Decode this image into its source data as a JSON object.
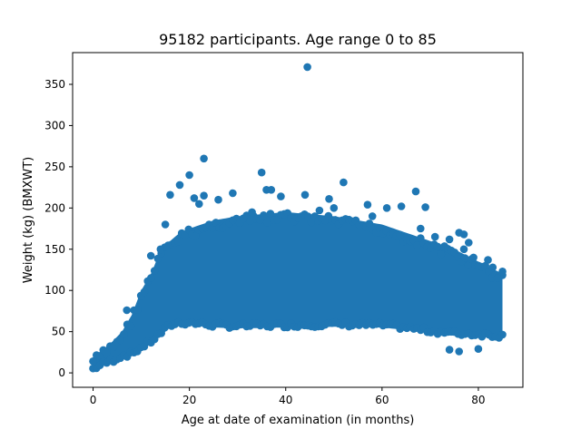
{
  "chart_data": {
    "type": "scatter",
    "title": "95182 participants. Age range 0 to 85",
    "xlabel": "Age at date of examination (in months)",
    "ylabel": "Weight (kg) (BMXWT)",
    "xlim": [
      -4.25,
      89.25
    ],
    "ylim": [
      -17.5,
      388.5
    ],
    "xticks": [
      0,
      20,
      40,
      60,
      80
    ],
    "yticks": [
      0,
      50,
      100,
      150,
      200,
      250,
      300,
      350
    ],
    "grid": false,
    "legend": "none",
    "marker_color": "#1f77b4",
    "series": [
      {
        "envelope_upper": [
          [
            0,
            20
          ],
          [
            2,
            28
          ],
          [
            4,
            38
          ],
          [
            6,
            50
          ],
          [
            8,
            70
          ],
          [
            10,
            100
          ],
          [
            12,
            120
          ],
          [
            14,
            148
          ],
          [
            16,
            160
          ],
          [
            18,
            170
          ],
          [
            20,
            175
          ],
          [
            25,
            185
          ],
          [
            30,
            190
          ],
          [
            40,
            195
          ],
          [
            50,
            190
          ],
          [
            55,
            185
          ],
          [
            60,
            180
          ],
          [
            65,
            170
          ],
          [
            70,
            160
          ],
          [
            75,
            150
          ],
          [
            80,
            135
          ],
          [
            85,
            120
          ]
        ],
        "envelope_lower": [
          [
            0,
            2
          ],
          [
            2,
            8
          ],
          [
            4,
            12
          ],
          [
            6,
            18
          ],
          [
            8,
            20
          ],
          [
            10,
            28
          ],
          [
            12,
            35
          ],
          [
            14,
            45
          ],
          [
            16,
            55
          ],
          [
            18,
            58
          ],
          [
            20,
            58
          ],
          [
            25,
            55
          ],
          [
            30,
            54
          ],
          [
            40,
            55
          ],
          [
            50,
            56
          ],
          [
            60,
            55
          ],
          [
            65,
            52
          ],
          [
            70,
            48
          ],
          [
            75,
            45
          ],
          [
            80,
            44
          ],
          [
            85,
            42
          ]
        ],
        "outliers": [
          [
            44.5,
            371
          ],
          [
            23,
            260
          ],
          [
            35,
            243
          ],
          [
            20,
            240
          ],
          [
            52,
            231
          ],
          [
            18,
            228
          ],
          [
            36,
            222
          ],
          [
            37,
            222
          ],
          [
            67,
            220
          ],
          [
            29,
            218
          ],
          [
            16,
            216
          ],
          [
            23,
            215
          ],
          [
            21,
            212
          ],
          [
            39,
            214
          ],
          [
            44,
            216
          ],
          [
            49,
            211
          ],
          [
            50,
            200
          ],
          [
            22,
            205
          ],
          [
            26,
            210
          ],
          [
            57,
            204
          ],
          [
            69,
            201
          ],
          [
            47,
            197
          ],
          [
            61,
            200
          ],
          [
            64,
            202
          ],
          [
            33,
            195
          ],
          [
            58,
            190
          ],
          [
            68,
            175
          ],
          [
            71,
            165
          ],
          [
            74,
            162
          ],
          [
            76,
            170
          ],
          [
            77,
            168
          ],
          [
            78,
            158
          ],
          [
            77,
            150
          ],
          [
            79,
            140
          ],
          [
            82,
            137
          ],
          [
            83,
            128
          ],
          [
            85,
            123
          ],
          [
            84,
            115
          ],
          [
            74,
            28
          ],
          [
            76,
            26
          ],
          [
            80,
            29
          ],
          [
            7,
            76
          ],
          [
            12,
            142
          ],
          [
            14,
            150
          ],
          [
            15,
            180
          ]
        ]
      }
    ]
  }
}
